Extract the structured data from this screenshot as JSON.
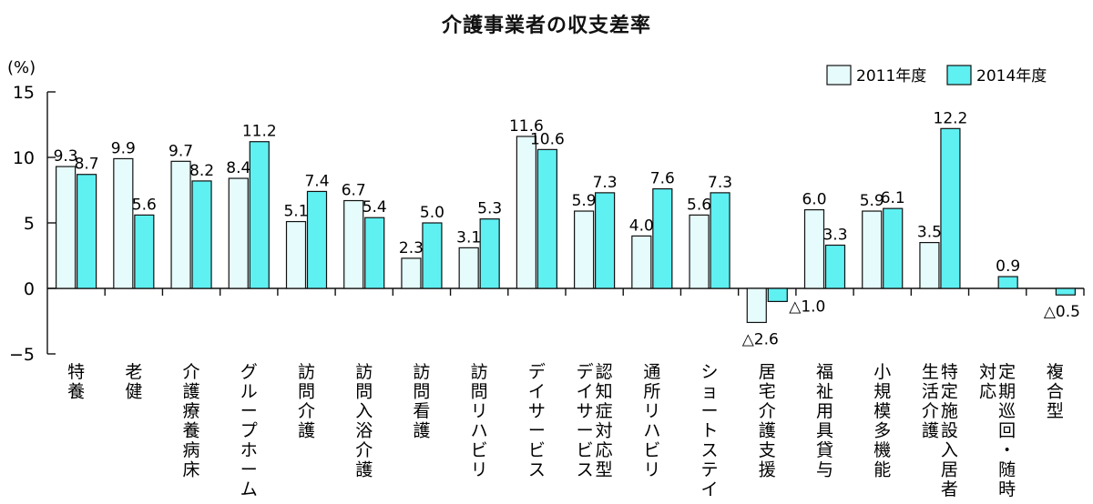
{
  "chart_data": {
    "type": "bar",
    "title": "介護事業者の収支差率",
    "ylabel": "(%)",
    "ylim": [
      -5,
      15
    ],
    "yticks": [
      -5,
      0,
      5,
      10,
      15
    ],
    "grid": false,
    "legend": "top-right",
    "categories": [
      "特養",
      "老健",
      "介護療養病床",
      "グループホーム",
      "訪問介護",
      "訪問入浴介護",
      "訪問看護",
      "訪問リハビリ",
      "デイサービス",
      "認知症対応型\nデイサービス",
      "通所リハビリ",
      "ショートステイ",
      "居宅介護支援",
      "福祉用具貸与",
      "小規模多機能",
      "特定施設入居者\n生活介護",
      "定期巡回・随時\n対応",
      "複合型"
    ],
    "series": [
      {
        "name": "2011年度",
        "color": "#e6fbfb",
        "values": [
          9.3,
          9.9,
          9.7,
          8.4,
          5.1,
          6.7,
          2.3,
          3.1,
          11.6,
          5.9,
          4.0,
          5.6,
          -2.6,
          6.0,
          5.9,
          3.5,
          null,
          null
        ],
        "labels": [
          "9.3",
          "9.9",
          "9.7",
          "8.4",
          "5.1",
          "6.7",
          "2.3",
          "3.1",
          "11.6",
          "5.9",
          "4.0",
          "5.6",
          "△2.6",
          "6.0",
          "5.9",
          "3.5",
          "",
          ""
        ]
      },
      {
        "name": "2014年度",
        "color": "#5ff0f2",
        "values": [
          8.7,
          5.6,
          8.2,
          11.2,
          7.4,
          5.4,
          5.0,
          5.3,
          10.6,
          7.3,
          7.6,
          7.3,
          -1.0,
          3.3,
          6.1,
          12.2,
          0.9,
          -0.5
        ],
        "labels": [
          "8.7",
          "5.6",
          "8.2",
          "11.2",
          "7.4",
          "5.4",
          "5.0",
          "5.3",
          "10.6",
          "7.3",
          "7.6",
          "7.3",
          "△1.0",
          "3.3",
          "6.1",
          "12.2",
          "0.9",
          "△0.5"
        ]
      }
    ]
  }
}
